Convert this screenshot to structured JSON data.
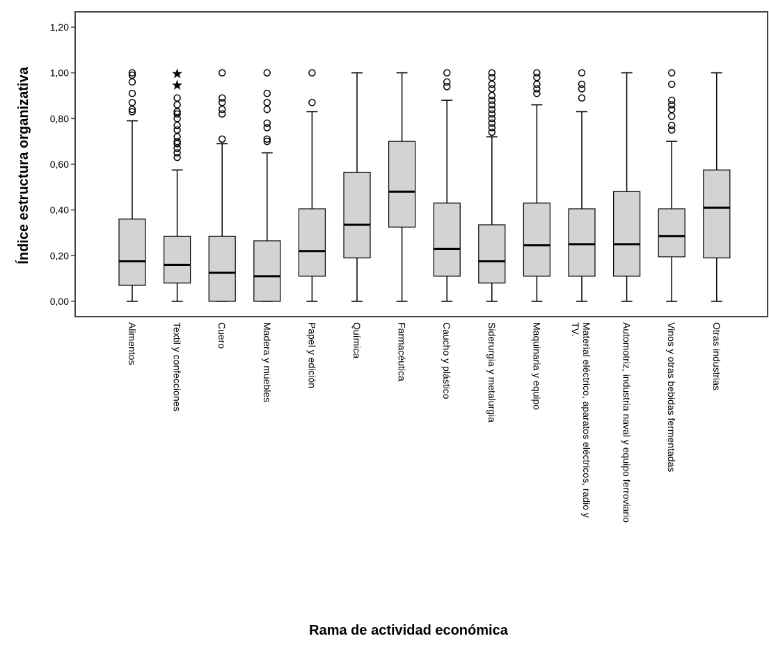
{
  "chart_data": {
    "type": "boxplot",
    "title": "",
    "xlabel": "Rama de actividad económica",
    "ylabel": "Índice estructura organizativa",
    "ylim": [
      0,
      1.2
    ],
    "yticks": [
      {
        "value": 0,
        "label": "0,00"
      },
      {
        "value": 0.2,
        "label": "0,20"
      },
      {
        "value": 0.4,
        "label": "0,40"
      },
      {
        "value": 0.6,
        "label": "0,60"
      },
      {
        "value": 0.8,
        "label": "0,80"
      },
      {
        "value": 1.0,
        "label": "1,00"
      },
      {
        "value": 1.2,
        "label": "1,20"
      }
    ],
    "grid": false,
    "colors": {
      "box_fill": "#d3d3d3",
      "stroke": "#000000"
    },
    "categories": [
      {
        "label": "Alimentos",
        "label_lines": [
          "Alimentos"
        ],
        "min": 0,
        "q1": 0.07,
        "median": 0.175,
        "q3": 0.36,
        "max": 0.79,
        "outliers": [
          0.83,
          0.84,
          0.87,
          0.91,
          0.96,
          0.99,
          1.0
        ],
        "extremes": []
      },
      {
        "label": "Textil y confecciones",
        "label_lines": [
          "Textil y confecciones"
        ],
        "min": 0,
        "q1": 0.08,
        "median": 0.16,
        "q3": 0.285,
        "max": 0.575,
        "outliers": [
          0.63,
          0.65,
          0.67,
          0.69,
          0.7,
          0.72,
          0.75,
          0.77,
          0.8,
          0.82,
          0.83,
          0.86,
          0.89
        ],
        "extremes": [
          0.95,
          1.0
        ]
      },
      {
        "label": "Cuero",
        "label_lines": [
          "Cuero"
        ],
        "min": 0,
        "q1": 0,
        "median": 0.125,
        "q3": 0.285,
        "max": 0.69,
        "outliers": [
          0.71,
          0.82,
          0.84,
          0.87,
          0.89,
          1.0
        ],
        "extremes": []
      },
      {
        "label": "Madera y muebles",
        "label_lines": [
          "Madera y muebles"
        ],
        "min": 0,
        "q1": 0,
        "median": 0.11,
        "q3": 0.265,
        "max": 0.65,
        "outliers": [
          0.7,
          0.71,
          0.76,
          0.78,
          0.84,
          0.87,
          0.91,
          1.0
        ],
        "extremes": []
      },
      {
        "label": "Papel y edición",
        "label_lines": [
          "Papel y edición"
        ],
        "min": 0,
        "q1": 0.11,
        "median": 0.22,
        "q3": 0.405,
        "max": 0.83,
        "outliers": [
          0.87,
          1.0
        ],
        "extremes": []
      },
      {
        "label": "Química",
        "label_lines": [
          "Química"
        ],
        "min": 0,
        "q1": 0.19,
        "median": 0.335,
        "q3": 0.565,
        "max": 1.0,
        "outliers": [],
        "extremes": []
      },
      {
        "label": "Farmacéutica",
        "label_lines": [
          "Farmacéutica"
        ],
        "min": 0,
        "q1": 0.325,
        "median": 0.48,
        "q3": 0.7,
        "max": 1.0,
        "outliers": [],
        "extremes": []
      },
      {
        "label": "Caucho y plástico",
        "label_lines": [
          "Caucho y plástico"
        ],
        "min": 0,
        "q1": 0.11,
        "median": 0.23,
        "q3": 0.43,
        "max": 0.88,
        "outliers": [
          0.94,
          0.96,
          1.0
        ],
        "extremes": []
      },
      {
        "label": "Siderurgia y metalurgia",
        "label_lines": [
          "Siderurgia y metalurgia"
        ],
        "min": 0,
        "q1": 0.08,
        "median": 0.175,
        "q3": 0.335,
        "max": 0.72,
        "outliers": [
          0.74,
          0.76,
          0.78,
          0.8,
          0.82,
          0.84,
          0.86,
          0.88,
          0.9,
          0.93,
          0.95,
          0.98,
          1.0
        ],
        "extremes": []
      },
      {
        "label": "Maquinaria y equipo",
        "label_lines": [
          "Maquinaria y equipo"
        ],
        "min": 0,
        "q1": 0.11,
        "median": 0.245,
        "q3": 0.43,
        "max": 0.86,
        "outliers": [
          0.91,
          0.93,
          0.95,
          0.98,
          1.0
        ],
        "extremes": []
      },
      {
        "label": "Material eléctrico, aparatos eléctricos, radio y TV.",
        "label_lines": [
          "Material eléctrico, aparatos eléctricos, radio y",
          "TV."
        ],
        "min": 0,
        "q1": 0.11,
        "median": 0.25,
        "q3": 0.405,
        "max": 0.83,
        "outliers": [
          0.89,
          0.93,
          0.95,
          1.0
        ],
        "extremes": []
      },
      {
        "label": "Automotriz, industria naval y equipo ferroviario",
        "label_lines": [
          "Automotriz, industria naval y equipo ferroviario"
        ],
        "min": 0,
        "q1": 0.11,
        "median": 0.25,
        "q3": 0.48,
        "max": 1.0,
        "outliers": [],
        "extremes": []
      },
      {
        "label": "Vinos y otras bebidas fermentadas",
        "label_lines": [
          "Vinos y otras bebidas fermentadas"
        ],
        "min": 0,
        "q1": 0.195,
        "median": 0.285,
        "q3": 0.405,
        "max": 0.7,
        "outliers": [
          0.75,
          0.77,
          0.81,
          0.84,
          0.86,
          0.88,
          0.95,
          1.0
        ],
        "extremes": []
      },
      {
        "label": "Otras industrias",
        "label_lines": [
          "Otras industrias"
        ],
        "min": 0,
        "q1": 0.19,
        "median": 0.41,
        "q3": 0.575,
        "max": 1.0,
        "outliers": [],
        "extremes": []
      }
    ]
  }
}
